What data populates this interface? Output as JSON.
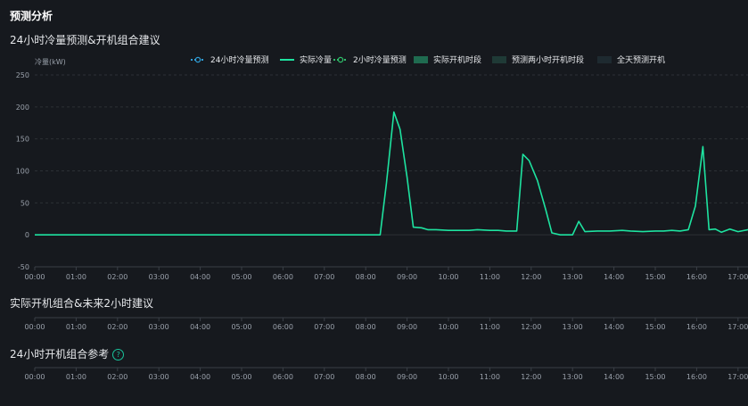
{
  "page": {
    "title": "预测分析"
  },
  "sections": {
    "forecast": {
      "title": "24小时冷量预测&开机组合建议"
    },
    "actual": {
      "title": "实际开机组合&未来2小时建议"
    },
    "reference": {
      "title": "24小时开机组合参考",
      "help_icon": "question-circle-icon"
    }
  },
  "legend": [
    {
      "label": "24小时冷量预测",
      "type": "line-dot",
      "color": "#2f9fd8"
    },
    {
      "label": "实际冷量",
      "type": "line",
      "color": "#1ee3a0"
    },
    {
      "label": "2小时冷量预测",
      "type": "line-dot",
      "color": "#2fbf6a"
    },
    {
      "label": "实际开机时段",
      "type": "box",
      "color": "#1f6b50"
    },
    {
      "label": "预测两小时开机时段",
      "type": "box",
      "color": "#1f3a36"
    },
    {
      "label": "全天预测开机",
      "type": "box",
      "color": "#1e2a30"
    }
  ],
  "colors": {
    "accent": "#1ee3a0",
    "background": "#16191e",
    "grid": "#2c3036"
  },
  "chart_data": {
    "type": "line",
    "ylabel": "冷量(kW)",
    "ylim": [
      -50,
      250
    ],
    "yticks": [
      250,
      200,
      150,
      100,
      50,
      0,
      -50
    ],
    "xlim": [
      0,
      17.25
    ],
    "xticks": [
      "00:00",
      "01:00",
      "02:00",
      "03:00",
      "04:00",
      "05:00",
      "06:00",
      "07:00",
      "08:00",
      "09:00",
      "10:00",
      "11:00",
      "12:00",
      "13:00",
      "14:00",
      "15:00",
      "16:00",
      "17:00"
    ],
    "grid": true,
    "legend_position": "top",
    "series": [
      {
        "name": "实际冷量",
        "x": [
          0,
          8.35,
          8.5,
          8.68,
          8.83,
          9.0,
          9.15,
          9.35,
          9.5,
          9.7,
          10.0,
          10.3,
          10.5,
          10.7,
          11.0,
          11.2,
          11.4,
          11.5,
          11.65,
          11.8,
          11.95,
          12.15,
          12.35,
          12.5,
          12.7,
          12.85,
          13.0,
          13.15,
          13.3,
          13.6,
          13.9,
          14.2,
          14.4,
          14.7,
          15.0,
          15.2,
          15.4,
          15.6,
          15.8,
          15.97,
          16.15,
          16.3,
          16.45,
          16.6,
          16.8,
          17.0,
          17.25
        ],
        "y": [
          0,
          0,
          80,
          192,
          165,
          90,
          12,
          11,
          8,
          8,
          7,
          7,
          7,
          8,
          7,
          7,
          6,
          6,
          6,
          126,
          116,
          85,
          40,
          3,
          0,
          0,
          0,
          21,
          5,
          6,
          6,
          7,
          6,
          5,
          6,
          6,
          7,
          6,
          8,
          45,
          138,
          8,
          9,
          4,
          9,
          5,
          8
        ]
      }
    ]
  },
  "timelines": {
    "actual": {
      "xticks": [
        "00:00",
        "01:00",
        "02:00",
        "03:00",
        "04:00",
        "05:00",
        "06:00",
        "07:00",
        "08:00",
        "09:00",
        "10:00",
        "11:00",
        "12:00",
        "13:00",
        "14:00",
        "15:00",
        "16:00",
        "17:00"
      ]
    },
    "reference": {
      "xticks": [
        "00:00",
        "01:00",
        "02:00",
        "03:00",
        "04:00",
        "05:00",
        "06:00",
        "07:00",
        "08:00",
        "09:00",
        "10:00",
        "11:00",
        "12:00",
        "13:00",
        "14:00",
        "15:00",
        "16:00",
        "17:00"
      ]
    }
  }
}
